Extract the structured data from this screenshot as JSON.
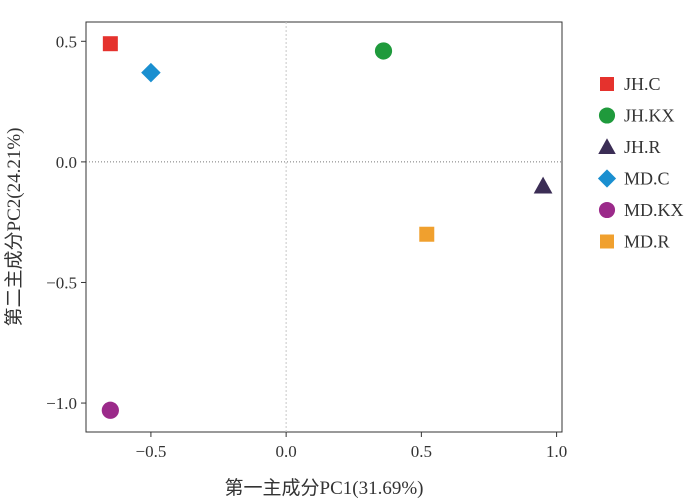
{
  "chart_data": {
    "type": "scatter",
    "title": "",
    "xlabel": "第一主成分PC1(31.69%)",
    "ylabel": "第二主成分PC2(24.21%)",
    "xlim": [
      -0.74,
      1.02
    ],
    "ylim": [
      -1.12,
      0.58
    ],
    "x_ticks": [
      -0.5,
      0.0,
      0.5,
      1.0
    ],
    "x_tick_labels": [
      "−0.5",
      "0.0",
      "0.5",
      "1.0"
    ],
    "y_ticks": [
      0.5,
      0.0,
      -0.5,
      -1.0
    ],
    "y_tick_labels": [
      "0.5",
      "0.0",
      "−0.5",
      "−1.0"
    ],
    "reference_lines": {
      "x": 0.0,
      "y": 0.0,
      "style": "dotted"
    },
    "grid": false,
    "legend_position": "right",
    "series": [
      {
        "name": "JH.C",
        "x": -0.65,
        "y": 0.49,
        "shape": "square",
        "color": "#e5322d"
      },
      {
        "name": "JH.KX",
        "x": 0.36,
        "y": 0.46,
        "shape": "circle",
        "color": "#1f9a3c"
      },
      {
        "name": "JH.R",
        "x": 0.95,
        "y": -0.1,
        "shape": "triangle",
        "color": "#3b2d55"
      },
      {
        "name": "MD.C",
        "x": -0.5,
        "y": 0.37,
        "shape": "diamond",
        "color": "#1a8fd0"
      },
      {
        "name": "MD.KX",
        "x": -0.65,
        "y": -1.03,
        "shape": "circle",
        "color": "#9b2a8a"
      },
      {
        "name": "MD.R",
        "x": 0.52,
        "y": -0.3,
        "shape": "square",
        "color": "#f0a02e"
      }
    ]
  }
}
